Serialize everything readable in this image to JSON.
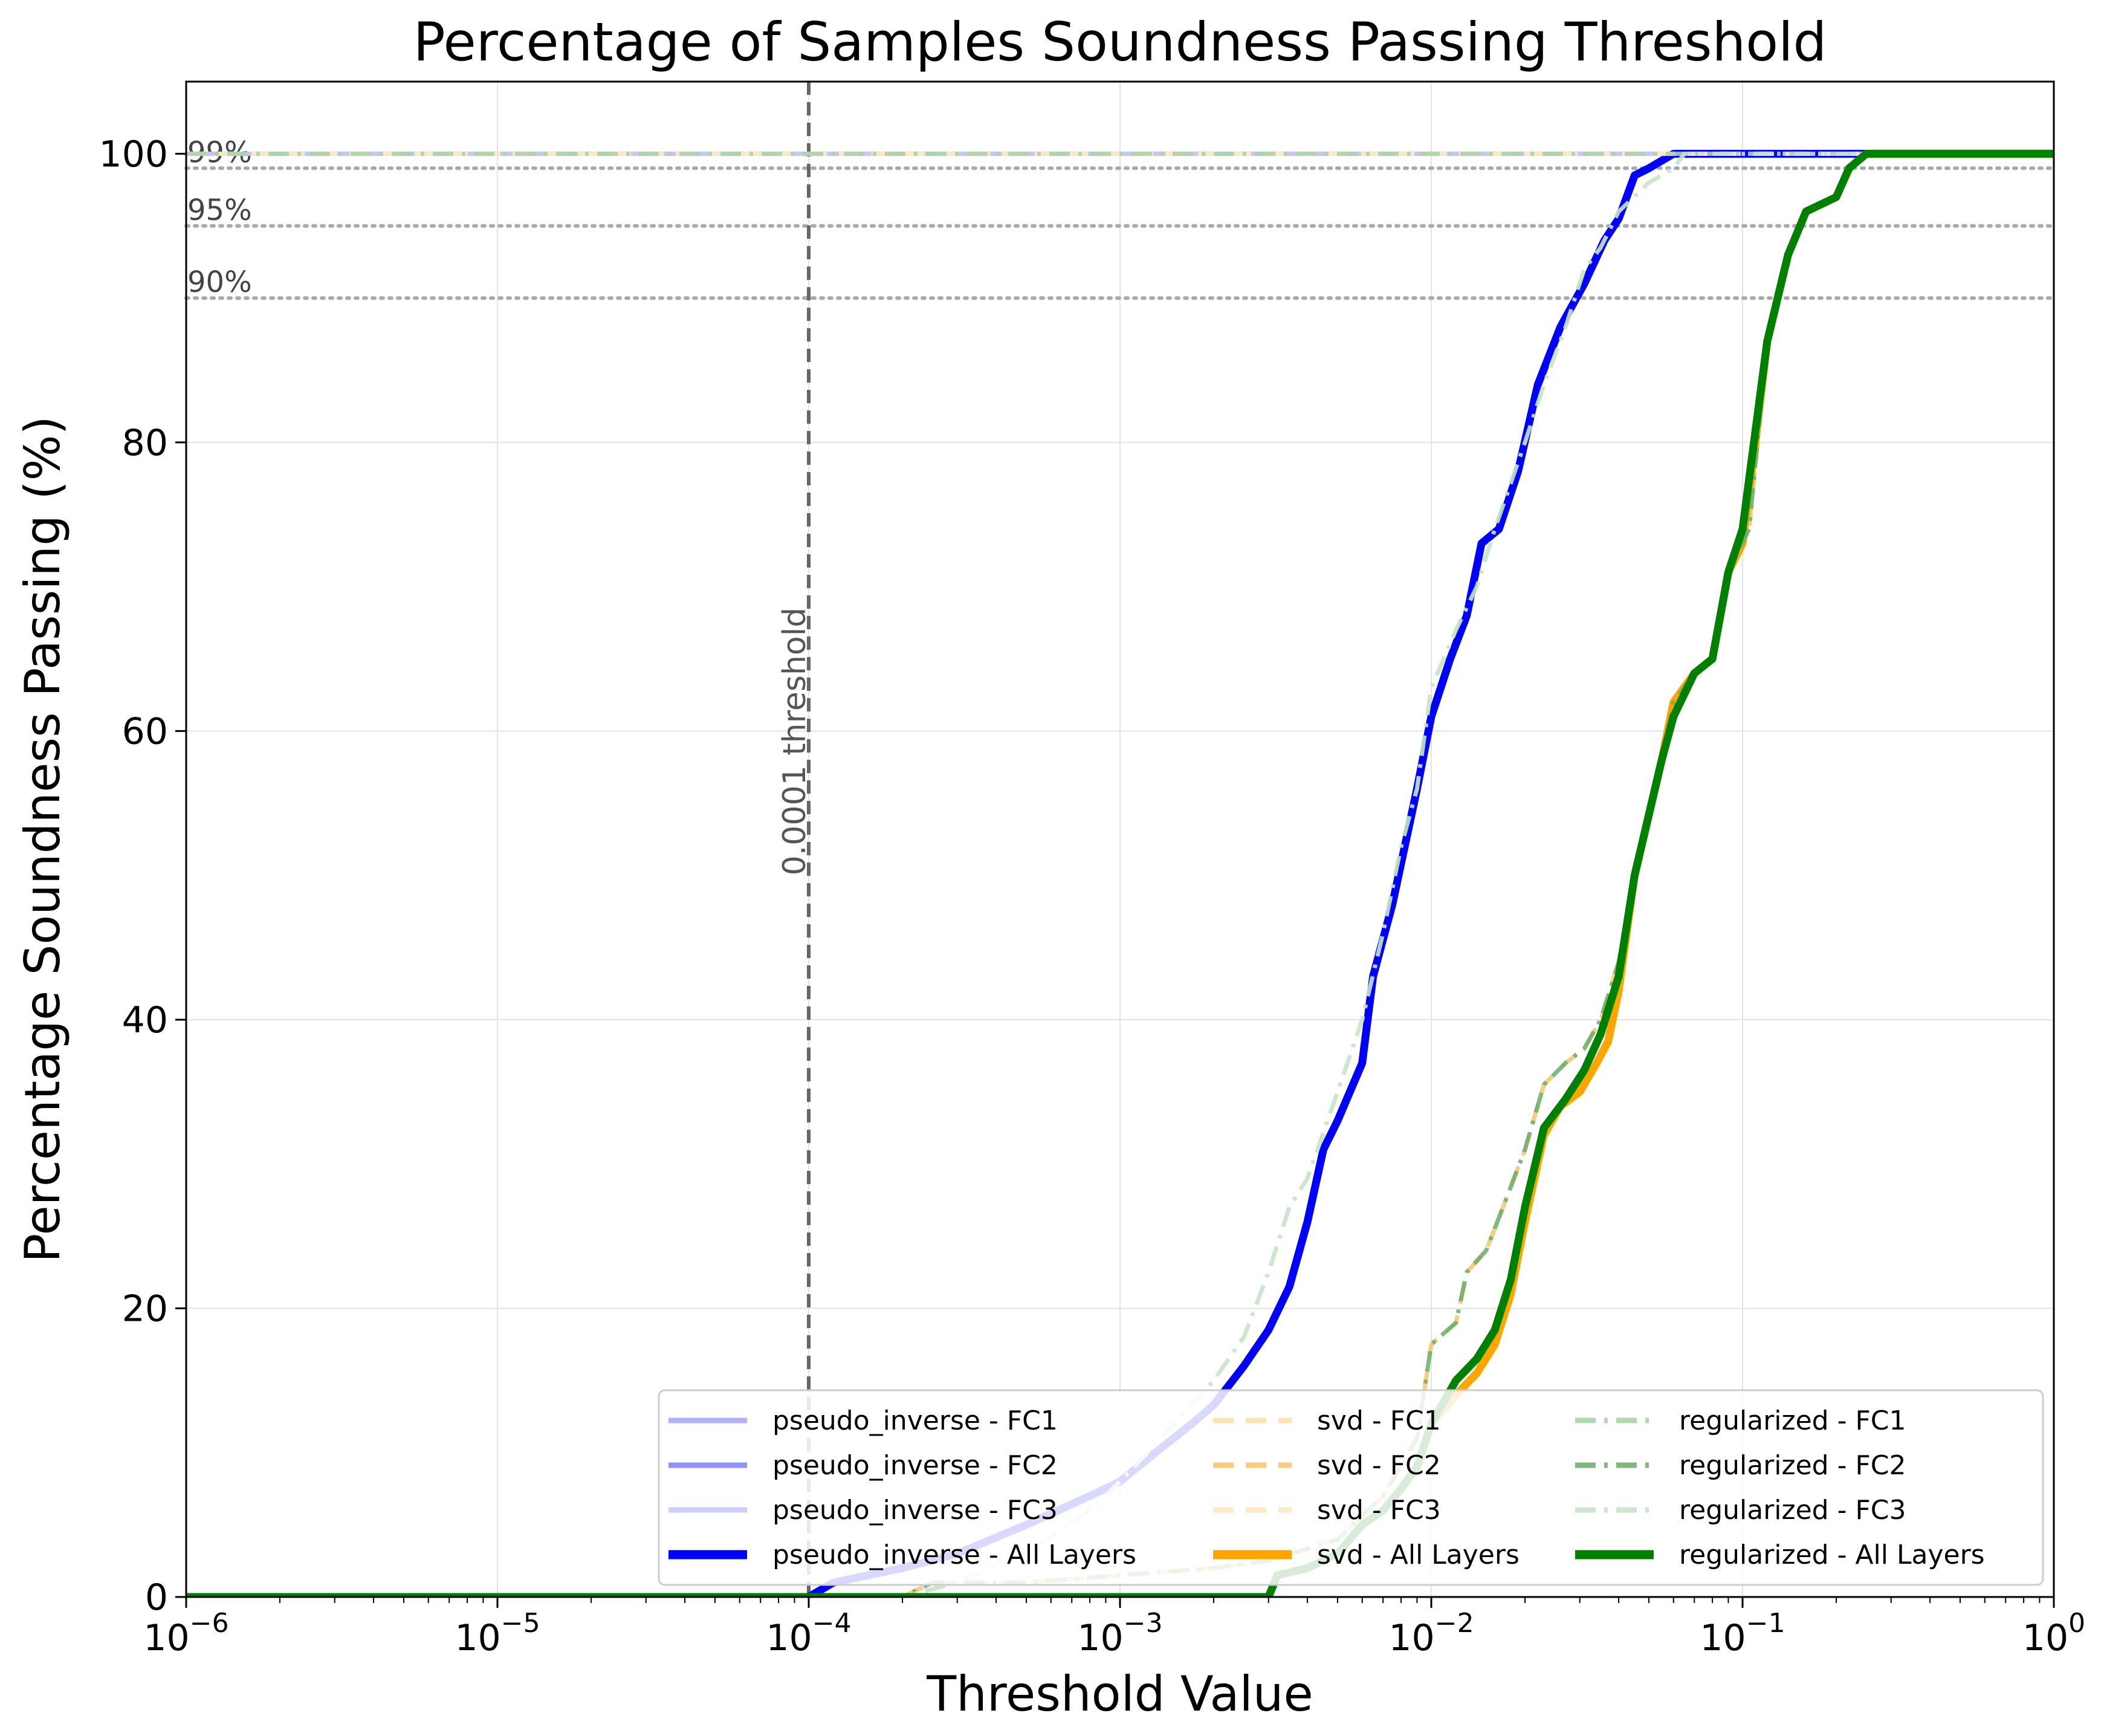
{
  "chart_data": {
    "type": "line",
    "title": "Percentage of Samples Soundness Passing Threshold",
    "xlabel": "Threshold Value",
    "ylabel": "Percentage Soundness Passing (%)",
    "xscale": "log",
    "xlim": [
      1e-06,
      1
    ],
    "ylim": [
      0,
      105
    ],
    "grid": true,
    "legend_position": "lower-right",
    "x_ticks": [
      {
        "base": "10",
        "exp": "−6",
        "value": 1e-06
      },
      {
        "base": "10",
        "exp": "−5",
        "value": 1e-05
      },
      {
        "base": "10",
        "exp": "−4",
        "value": 0.0001
      },
      {
        "base": "10",
        "exp": "−3",
        "value": 0.001
      },
      {
        "base": "10",
        "exp": "−2",
        "value": 0.01
      },
      {
        "base": "10",
        "exp": "−1",
        "value": 0.1
      },
      {
        "base": "10",
        "exp": "0",
        "value": 1
      }
    ],
    "y_ticks": [
      0,
      20,
      40,
      60,
      80,
      100
    ],
    "reference_lines": [
      {
        "label": "99%",
        "y": 99,
        "color": "#aaaaaa",
        "style": "dotted"
      },
      {
        "label": "95%",
        "y": 95,
        "color": "#aaaaaa",
        "style": "dotted"
      },
      {
        "label": "90%",
        "y": 90,
        "color": "#aaaaaa",
        "style": "dotted"
      }
    ],
    "vertical_line": {
      "label": "0.0001 threshold",
      "x": 0.0001,
      "color": "#666666",
      "style": "dashed"
    },
    "series": [
      {
        "name": "pseudo_inverse - FC1",
        "color": "#aaaaff",
        "style": "solid",
        "width": "normal",
        "opacity": 0.9,
        "points": [
          [
            1e-06,
            100
          ],
          [
            1,
            100
          ]
        ]
      },
      {
        "name": "pseudo_inverse - FC2",
        "color": "#7f7fff",
        "style": "solid",
        "width": "normal",
        "opacity": 0.85,
        "points": [
          [
            1e-06,
            0
          ],
          [
            0.0001,
            0
          ],
          [
            0.00012,
            1
          ],
          [
            0.0002,
            2
          ],
          [
            0.0003,
            3
          ],
          [
            0.0005,
            5
          ],
          [
            0.0008,
            7
          ],
          [
            0.001,
            8
          ],
          [
            0.0013,
            10
          ],
          [
            0.0017,
            12
          ],
          [
            0.002,
            13.3
          ],
          [
            0.0025,
            16
          ],
          [
            0.003,
            18.5
          ],
          [
            0.0035,
            21.5
          ],
          [
            0.004,
            26
          ],
          [
            0.0045,
            31
          ],
          [
            0.005,
            33
          ],
          [
            0.006,
            37
          ],
          [
            0.0065,
            43
          ],
          [
            0.0075,
            48
          ],
          [
            0.009,
            56
          ],
          [
            0.01,
            61
          ],
          [
            0.0115,
            65
          ],
          [
            0.013,
            68
          ],
          [
            0.0145,
            73
          ],
          [
            0.0165,
            74
          ],
          [
            0.019,
            78
          ],
          [
            0.022,
            84
          ],
          [
            0.026,
            88
          ],
          [
            0.031,
            91
          ],
          [
            0.036,
            94
          ],
          [
            0.04,
            95.5
          ],
          [
            0.045,
            98.5
          ],
          [
            0.05,
            99
          ],
          [
            0.06,
            100
          ],
          [
            1,
            100
          ]
        ]
      },
      {
        "name": "pseudo_inverse - FC3",
        "color": "#c8c8ff",
        "style": "solid",
        "width": "normal",
        "opacity": 0.9,
        "points": [
          [
            1e-06,
            100
          ],
          [
            1,
            100
          ]
        ]
      },
      {
        "name": "pseudo_inverse - All Layers",
        "color": "#0000ff",
        "style": "solid",
        "width": "thick",
        "opacity": 1,
        "points": [
          [
            1e-06,
            0
          ],
          [
            0.0001,
            0
          ],
          [
            0.00012,
            1
          ],
          [
            0.0002,
            2
          ],
          [
            0.0003,
            3
          ],
          [
            0.0005,
            5
          ],
          [
            0.0008,
            7
          ],
          [
            0.001,
            8
          ],
          [
            0.0013,
            10
          ],
          [
            0.0017,
            12
          ],
          [
            0.002,
            13.3
          ],
          [
            0.0025,
            16
          ],
          [
            0.003,
            18.5
          ],
          [
            0.0035,
            21.5
          ],
          [
            0.004,
            26
          ],
          [
            0.0045,
            31
          ],
          [
            0.005,
            33
          ],
          [
            0.006,
            37
          ],
          [
            0.0065,
            43
          ],
          [
            0.0075,
            48
          ],
          [
            0.009,
            56
          ],
          [
            0.01,
            61
          ],
          [
            0.0115,
            65
          ],
          [
            0.013,
            68
          ],
          [
            0.0145,
            73
          ],
          [
            0.0165,
            74
          ],
          [
            0.019,
            78
          ],
          [
            0.022,
            84
          ],
          [
            0.026,
            88
          ],
          [
            0.031,
            91
          ],
          [
            0.036,
            94
          ],
          [
            0.04,
            95.5
          ],
          [
            0.045,
            98.5
          ],
          [
            0.05,
            99
          ],
          [
            0.06,
            100
          ],
          [
            1,
            100
          ]
        ]
      },
      {
        "name": "svd - FC1",
        "color": "#ffe0a8",
        "style": "dashed",
        "width": "normal",
        "opacity": 0.9,
        "points": [
          [
            1e-06,
            100
          ],
          [
            1,
            100
          ]
        ]
      },
      {
        "name": "svd - FC2",
        "color": "#f8c870",
        "style": "dashed",
        "width": "normal",
        "opacity": 0.9,
        "points": [
          [
            1e-06,
            0
          ],
          [
            0.0002,
            0
          ],
          [
            0.00025,
            1
          ],
          [
            0.0005,
            1
          ],
          [
            0.001,
            1.5
          ],
          [
            0.002,
            2
          ],
          [
            0.003,
            2.5
          ],
          [
            0.005,
            4
          ],
          [
            0.007,
            7
          ],
          [
            0.009,
            11
          ],
          [
            0.01,
            17.5
          ],
          [
            0.012,
            19
          ],
          [
            0.013,
            22.5
          ],
          [
            0.015,
            24
          ],
          [
            0.017,
            27
          ],
          [
            0.02,
            31
          ],
          [
            0.023,
            35.5
          ],
          [
            0.027,
            37
          ],
          [
            0.031,
            38
          ],
          [
            0.035,
            40
          ],
          [
            0.04,
            44
          ],
          [
            0.045,
            50
          ],
          [
            0.055,
            58
          ],
          [
            0.06,
            62
          ],
          [
            0.07,
            64
          ],
          [
            0.08,
            65
          ],
          [
            0.09,
            71
          ],
          [
            0.105,
            74
          ],
          [
            0.12,
            87
          ],
          [
            0.14,
            93
          ],
          [
            0.16,
            96
          ],
          [
            0.2,
            97
          ],
          [
            0.22,
            99
          ],
          [
            0.25,
            100
          ],
          [
            1,
            100
          ]
        ]
      },
      {
        "name": "svd - FC3",
        "color": "#ffe8c0",
        "style": "dashed",
        "width": "normal",
        "opacity": 0.9,
        "points": [
          [
            1e-06,
            100
          ],
          [
            1,
            100
          ]
        ]
      },
      {
        "name": "svd - All Layers",
        "color": "#ffa500",
        "style": "solid",
        "width": "thick",
        "opacity": 1,
        "points": [
          [
            1e-06,
            0
          ],
          [
            0.003,
            0
          ],
          [
            0.0032,
            1.5
          ],
          [
            0.004,
            2
          ],
          [
            0.005,
            3
          ],
          [
            0.006,
            5
          ],
          [
            0.007,
            6
          ],
          [
            0.008,
            7.5
          ],
          [
            0.009,
            9
          ],
          [
            0.01,
            12
          ],
          [
            0.012,
            14
          ],
          [
            0.014,
            15.5
          ],
          [
            0.016,
            17.5
          ],
          [
            0.018,
            21
          ],
          [
            0.02,
            26
          ],
          [
            0.023,
            32
          ],
          [
            0.026,
            34
          ],
          [
            0.03,
            35
          ],
          [
            0.034,
            37
          ],
          [
            0.037,
            38.5
          ],
          [
            0.04,
            42
          ],
          [
            0.045,
            50
          ],
          [
            0.055,
            58
          ],
          [
            0.06,
            62
          ],
          [
            0.07,
            64
          ],
          [
            0.08,
            65
          ],
          [
            0.09,
            71
          ],
          [
            0.1,
            73
          ],
          [
            0.11,
            80
          ],
          [
            0.12,
            87
          ],
          [
            0.14,
            93
          ],
          [
            0.16,
            96
          ],
          [
            0.2,
            97
          ],
          [
            0.22,
            99
          ],
          [
            0.25,
            100
          ],
          [
            1,
            100
          ]
        ]
      },
      {
        "name": "regularized - FC1",
        "color": "#a8d4a8",
        "style": "dashdot",
        "width": "normal",
        "opacity": 0.9,
        "points": [
          [
            1e-06,
            100
          ],
          [
            1,
            100
          ]
        ]
      },
      {
        "name": "regularized - FC2",
        "color": "#6aad6a",
        "style": "dashdot",
        "width": "normal",
        "opacity": 0.85,
        "points": [
          [
            1e-06,
            0
          ],
          [
            0.0002,
            0
          ],
          [
            0.00025,
            1
          ],
          [
            0.0005,
            1
          ],
          [
            0.001,
            1.5
          ],
          [
            0.002,
            2
          ],
          [
            0.003,
            2.5
          ],
          [
            0.005,
            4
          ],
          [
            0.007,
            7
          ],
          [
            0.009,
            11
          ],
          [
            0.01,
            17.5
          ],
          [
            0.012,
            19
          ],
          [
            0.013,
            22.5
          ],
          [
            0.015,
            24
          ],
          [
            0.017,
            27
          ],
          [
            0.02,
            31
          ],
          [
            0.023,
            35.5
          ],
          [
            0.027,
            37
          ],
          [
            0.031,
            38
          ],
          [
            0.035,
            40
          ],
          [
            0.04,
            44
          ],
          [
            0.045,
            50
          ],
          [
            0.055,
            58
          ],
          [
            0.06,
            62
          ],
          [
            0.07,
            64
          ],
          [
            0.08,
            65
          ],
          [
            0.09,
            71
          ],
          [
            0.105,
            74
          ],
          [
            0.12,
            87
          ],
          [
            0.14,
            93
          ],
          [
            0.16,
            96
          ],
          [
            0.2,
            97
          ],
          [
            0.22,
            99
          ],
          [
            0.25,
            100
          ],
          [
            1,
            100
          ]
        ]
      },
      {
        "name": "regularized - FC3",
        "color": "#c8e4c8",
        "style": "dashdot",
        "width": "normal",
        "opacity": 0.9,
        "points": [
          [
            1e-06,
            0
          ],
          [
            0.0002,
            0
          ],
          [
            0.0003,
            1
          ],
          [
            0.0005,
            3
          ],
          [
            0.0008,
            6
          ],
          [
            0.001,
            8
          ],
          [
            0.0015,
            12
          ],
          [
            0.002,
            15
          ],
          [
            0.0025,
            18
          ],
          [
            0.003,
            22.5
          ],
          [
            0.0035,
            27
          ],
          [
            0.004,
            29
          ],
          [
            0.005,
            35
          ],
          [
            0.006,
            40
          ],
          [
            0.007,
            46
          ],
          [
            0.008,
            52
          ],
          [
            0.009,
            56
          ],
          [
            0.01,
            63
          ],
          [
            0.012,
            67
          ],
          [
            0.014,
            70
          ],
          [
            0.016,
            74
          ],
          [
            0.02,
            80
          ],
          [
            0.023,
            84
          ],
          [
            0.027,
            88
          ],
          [
            0.031,
            92
          ],
          [
            0.035,
            93.5
          ],
          [
            0.04,
            96
          ],
          [
            0.05,
            98
          ],
          [
            0.06,
            99
          ],
          [
            0.065,
            100
          ],
          [
            1,
            100
          ]
        ]
      },
      {
        "name": "regularized - All Layers",
        "color": "#008000",
        "style": "solid",
        "width": "thick",
        "opacity": 1,
        "points": [
          [
            1e-06,
            0
          ],
          [
            0.003,
            0
          ],
          [
            0.0032,
            1.5
          ],
          [
            0.004,
            2
          ],
          [
            0.005,
            3
          ],
          [
            0.006,
            5
          ],
          [
            0.007,
            6
          ],
          [
            0.008,
            7.5
          ],
          [
            0.009,
            9
          ],
          [
            0.01,
            12
          ],
          [
            0.012,
            15
          ],
          [
            0.014,
            16.5
          ],
          [
            0.016,
            18.5
          ],
          [
            0.018,
            22
          ],
          [
            0.02,
            27
          ],
          [
            0.023,
            32.5
          ],
          [
            0.027,
            34.5
          ],
          [
            0.031,
            36.5
          ],
          [
            0.035,
            39
          ],
          [
            0.04,
            43
          ],
          [
            0.045,
            50
          ],
          [
            0.055,
            58
          ],
          [
            0.06,
            61
          ],
          [
            0.07,
            64
          ],
          [
            0.08,
            65
          ],
          [
            0.09,
            71
          ],
          [
            0.1,
            74
          ],
          [
            0.12,
            87
          ],
          [
            0.14,
            93
          ],
          [
            0.16,
            96
          ],
          [
            0.2,
            97
          ],
          [
            0.22,
            99
          ],
          [
            0.25,
            100
          ],
          [
            1,
            100
          ]
        ]
      }
    ]
  }
}
